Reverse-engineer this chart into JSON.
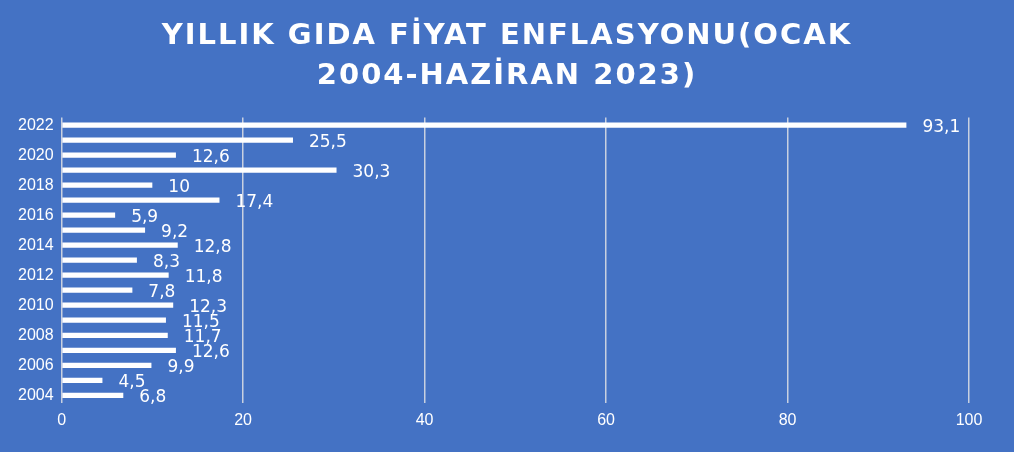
{
  "chart_data": {
    "type": "bar",
    "orientation": "horizontal",
    "title": "YILLIK GIDA FİYAT ENFLASYONU(OCAK 2004-HAZİRAN 2023)",
    "categories": [
      "2022",
      null,
      "2020",
      null,
      "2018",
      null,
      "2016",
      null,
      "2014",
      null,
      "2012",
      null,
      "2010",
      null,
      "2008",
      null,
      "2006",
      null,
      "2004"
    ],
    "values": [
      93.1,
      25.5,
      12.6,
      30.3,
      10,
      17.4,
      5.9,
      9.2,
      12.8,
      8.3,
      11.8,
      7.8,
      12.3,
      11.5,
      11.7,
      12.6,
      9.9,
      4.5,
      6.8
    ],
    "value_labels": [
      "93,1",
      "25,5",
      "12,6",
      "30,3",
      "10",
      "17,4",
      "5,9",
      "9,2",
      "12,8",
      "8,3",
      "11,8",
      "7,8",
      "12,3",
      "11,5",
      "11,7",
      "12,6",
      "9,9",
      "4,5",
      "6,8"
    ],
    "color": "#ffffff",
    "xlim": [
      0,
      100
    ],
    "xticks": [
      0,
      20,
      40,
      60,
      80,
      100
    ],
    "grid": "x",
    "legend": false
  }
}
